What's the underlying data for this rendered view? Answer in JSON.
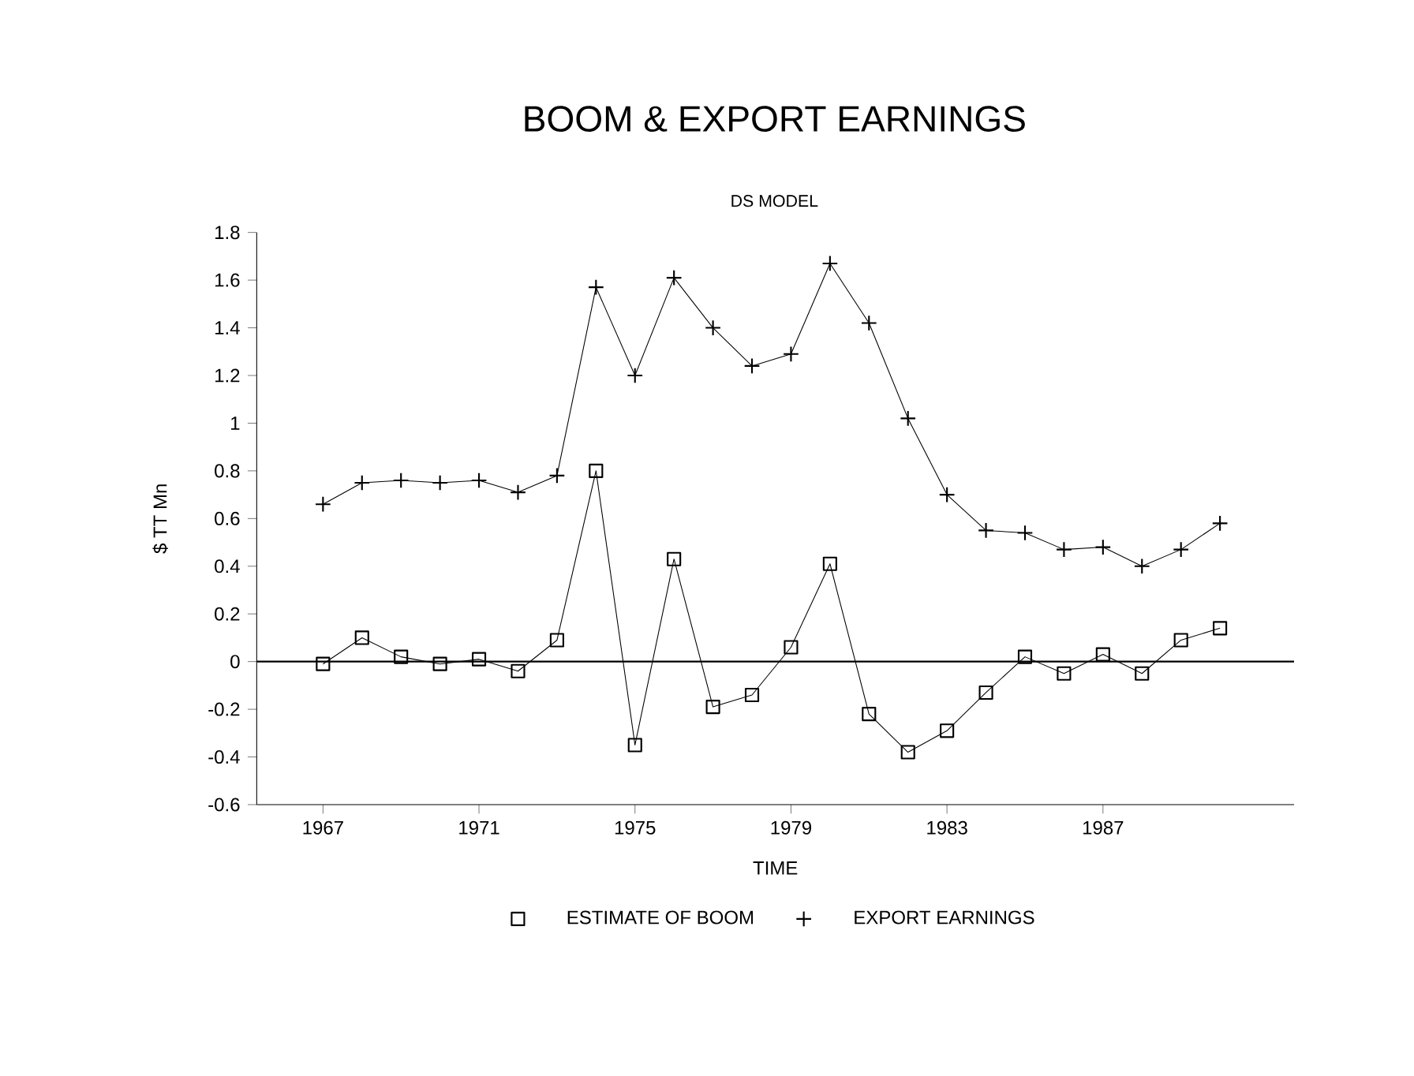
{
  "chart_data": {
    "type": "line",
    "title": "BOOM & EXPORT EARNINGS",
    "subtitle": "DS MODEL",
    "xlabel": "TIME",
    "ylabel": "$ TT Mn",
    "x": [
      1967,
      1968,
      1969,
      1970,
      1971,
      1972,
      1973,
      1974,
      1975,
      1976,
      1977,
      1978,
      1979,
      1980,
      1981,
      1982,
      1983,
      1984,
      1985,
      1986,
      1987,
      1988,
      1989,
      1990
    ],
    "series": [
      {
        "name": "ESTIMATE OF BOOM",
        "color": "#000000",
        "marker": "square",
        "values": [
          -0.01,
          0.1,
          0.02,
          -0.01,
          0.01,
          -0.04,
          0.09,
          0.8,
          -0.35,
          0.43,
          -0.19,
          -0.14,
          0.06,
          0.41,
          -0.22,
          -0.38,
          -0.29,
          -0.13,
          0.02,
          -0.05,
          0.03,
          -0.05,
          0.09,
          0.14
        ]
      },
      {
        "name": "EXPORT EARNINGS",
        "color": "#000000",
        "marker": "cross",
        "values": [
          0.66,
          0.75,
          0.76,
          0.75,
          0.76,
          0.71,
          0.78,
          1.57,
          1.2,
          1.61,
          1.4,
          1.24,
          1.29,
          1.67,
          1.42,
          1.02,
          0.7,
          0.55,
          0.54,
          0.47,
          0.48,
          0.4,
          0.47,
          0.58
        ]
      }
    ],
    "xlim": [
      1965.3,
      1991.9
    ],
    "xticks": [
      1967,
      1971,
      1975,
      1979,
      1983,
      1987
    ],
    "ylim": [
      -0.6,
      1.8
    ],
    "yticks": [
      -0.6,
      -0.4,
      -0.2,
      0,
      0.2,
      0.4,
      0.6,
      0.8,
      1,
      1.2,
      1.4,
      1.6,
      1.8
    ],
    "ref_lines": [
      {
        "axis": "y",
        "value": 0,
        "color": "#000000"
      }
    ],
    "grid": false,
    "legend": "bottom",
    "line_style": "solid"
  }
}
